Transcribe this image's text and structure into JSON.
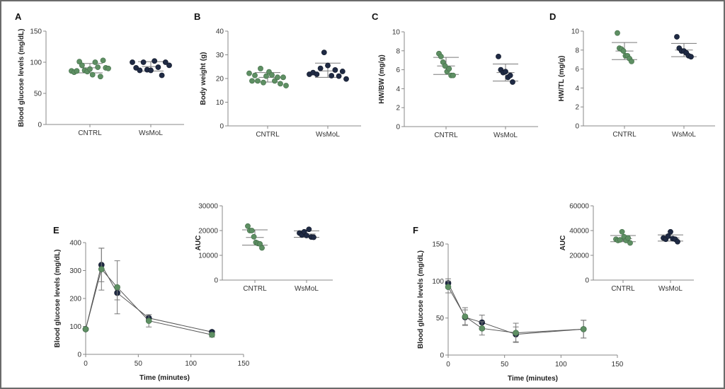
{
  "colors": {
    "cntrl": "#5e8f63",
    "cntrl_edge": "#3f6b45",
    "wsmol": "#1f2a44",
    "wsmol_edge": "#111827",
    "axis": "#888888",
    "errorbar": "#7a7a7a",
    "line": "#555555",
    "frame": "#6b6b6b"
  },
  "chart_data": [
    {
      "id": "A",
      "type": "scatter",
      "panel_label": "A",
      "ylabel": "Blood glucose levels (mg/dL)",
      "ylim": [
        0,
        150
      ],
      "yticks": [
        0,
        50,
        100,
        150
      ],
      "categories": [
        "CNTRL",
        "WsMoL"
      ],
      "series": [
        {
          "name": "CNTRL",
          "values": [
            86,
            84,
            86,
            101,
            95,
            87,
            85,
            89,
            80,
            100,
            92,
            77,
            103,
            91,
            90
          ],
          "mean": 91,
          "sd_upper": 98,
          "sd_lower": 83
        },
        {
          "name": "WsMoL",
          "values": [
            100,
            91,
            87,
            100,
            88,
            87,
            102,
            92,
            79,
            100,
            95
          ],
          "mean": 93,
          "sd_upper": 101,
          "sd_lower": 86
        }
      ]
    },
    {
      "id": "B",
      "type": "scatter",
      "panel_label": "B",
      "ylabel": "Body weight (g)",
      "ylim": [
        0,
        40
      ],
      "yticks": [
        0,
        10,
        20,
        30,
        40
      ],
      "categories": [
        "CNTRL",
        "WsMoL"
      ],
      "series": [
        {
          "name": "CNTRL",
          "values": [
            22.2,
            19.0,
            21.3,
            19.0,
            24.2,
            18.3,
            21.0,
            22.8,
            21.5,
            19.0,
            20.5,
            17.8,
            20.5,
            17.0
          ],
          "mean": 20.5,
          "sd_upper": 22.5,
          "sd_lower": 18.5
        },
        {
          "name": "WsMoL",
          "values": [
            21.8,
            22.5,
            21.8,
            24.3,
            31.0,
            25.5,
            21.2,
            23.6,
            21.0,
            23.0,
            19.8
          ],
          "mean": 23.2,
          "sd_upper": 26.5,
          "sd_lower": 20.5
        }
      ]
    },
    {
      "id": "C",
      "type": "scatter",
      "panel_label": "C",
      "ylabel": "HW/BW (mg/g)",
      "ylim": [
        0,
        10
      ],
      "yticks": [
        0,
        2,
        4,
        6,
        8,
        10
      ],
      "categories": [
        "CNTRL",
        "WsMoL"
      ],
      "series": [
        {
          "name": "CNTRL",
          "values": [
            7.7,
            7.4,
            6.8,
            6.4,
            5.8,
            6.1,
            5.4,
            5.4
          ],
          "mean": 6.4,
          "sd_upper": 7.3,
          "sd_lower": 5.5
        },
        {
          "name": "WsMoL",
          "values": [
            7.4,
            6.0,
            5.7,
            5.8,
            5.2,
            5.4,
            4.7
          ],
          "mean": 5.7,
          "sd_upper": 6.6,
          "sd_lower": 4.8
        }
      ]
    },
    {
      "id": "D",
      "type": "scatter",
      "panel_label": "D",
      "ylabel": "HW/TL (mg/g)",
      "ylim": [
        0,
        10
      ],
      "yticks": [
        0,
        2,
        4,
        6,
        8,
        10
      ],
      "categories": [
        "CNTRL",
        "WsMoL"
      ],
      "series": [
        {
          "name": "CNTRL",
          "values": [
            9.8,
            8.2,
            8.1,
            7.9,
            7.4,
            7.4,
            7.1,
            6.8
          ],
          "mean": 7.9,
          "sd_upper": 8.8,
          "sd_lower": 7.0
        },
        {
          "name": "WsMoL",
          "values": [
            9.4,
            8.2,
            7.9,
            7.9,
            7.7,
            7.4,
            7.3
          ],
          "mean": 8.0,
          "sd_upper": 8.7,
          "sd_lower": 7.3
        }
      ]
    },
    {
      "id": "E",
      "type": "line",
      "panel_label": "E",
      "ylabel": "Blood glucose levels (mg/dL)",
      "xlabel": "Time (minutes)",
      "xlim": [
        0,
        150
      ],
      "ylim": [
        0,
        400
      ],
      "xticks": [
        0,
        50,
        100,
        150
      ],
      "yticks": [
        0,
        100,
        200,
        300,
        400
      ],
      "x": [
        0,
        15,
        30,
        60,
        120
      ],
      "series": [
        {
          "name": "WsMoL",
          "values": [
            90,
            320,
            220,
            130,
            80
          ],
          "err": [
            5,
            60,
            25,
            12,
            5
          ]
        },
        {
          "name": "CNTRL",
          "values": [
            90,
            305,
            240,
            120,
            70
          ],
          "err": [
            5,
            75,
            95,
            22,
            8
          ]
        }
      ]
    },
    {
      "id": "E-inset",
      "type": "scatter",
      "ylabel": "AUC",
      "ylim": [
        0,
        30000
      ],
      "yticks": [
        0,
        10000,
        20000,
        30000
      ],
      "categories": [
        "CNTRL",
        "WsMoL"
      ],
      "series": [
        {
          "name": "CNTRL",
          "values": [
            21800,
            20000,
            20000,
            17500,
            15200,
            14800,
            14600,
            13000
          ],
          "mean": 17200,
          "sd_upper": 20300,
          "sd_lower": 14100
        },
        {
          "name": "WsMoL",
          "values": [
            19000,
            18200,
            19500,
            18000,
            20500,
            17400,
            17300
          ],
          "mean": 18600,
          "sd_upper": 19900,
          "sd_lower": 17300
        }
      ]
    },
    {
      "id": "F",
      "type": "line",
      "panel_label": "F",
      "ylabel": "Blood glucose levels (mg/dL)",
      "xlabel": "Time (minutes)",
      "xlim": [
        0,
        150
      ],
      "ylim": [
        0,
        150
      ],
      "xticks": [
        0,
        50,
        100,
        150
      ],
      "yticks": [
        0,
        50,
        100,
        150
      ],
      "x": [
        0,
        15,
        30,
        60,
        120
      ],
      "series": [
        {
          "name": "WsMoL",
          "values": [
            97,
            51,
            44,
            28,
            35
          ],
          "err": [
            6,
            10,
            10,
            10,
            12
          ]
        },
        {
          "name": "CNTRL",
          "values": [
            92,
            52,
            36,
            30,
            35
          ],
          "err": [
            8,
            12,
            9,
            13,
            12
          ]
        }
      ]
    },
    {
      "id": "F-inset",
      "type": "scatter",
      "ylabel": "AUC",
      "ylim": [
        0,
        60000
      ],
      "yticks": [
        0,
        20000,
        40000,
        60000
      ],
      "categories": [
        "CNTRL",
        "WsMoL"
      ],
      "series": [
        {
          "name": "CNTRL",
          "values": [
            33000,
            32000,
            32500,
            39000,
            35000,
            32000,
            34000,
            30000
          ],
          "mean": 33500,
          "sd_upper": 36000,
          "sd_lower": 31000
        },
        {
          "name": "WsMoL",
          "values": [
            34000,
            33000,
            35500,
            39000,
            33500,
            33000,
            31000
          ],
          "mean": 34000,
          "sd_upper": 36500,
          "sd_lower": 31500
        }
      ]
    }
  ]
}
